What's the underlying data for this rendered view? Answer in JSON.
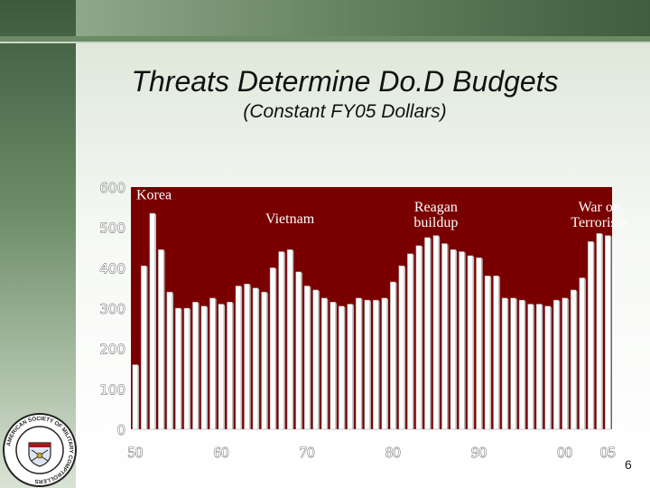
{
  "slide": {
    "title": "Threats Determine Do.D Budgets",
    "subtitle": "(Constant FY05 Dollars)",
    "page_number": "6"
  },
  "logo": {
    "text": "AMERICAN SOCIETY OF MILITARY COMPTROLLERS"
  },
  "colors": {
    "plot_background": "#7a0000",
    "bar_fill": "#ffffff",
    "bar_shadow": "#c9c9c9",
    "tick_label_y": "#ffffff",
    "tick_label_x": "#ffffff",
    "annotation_text": "#ffffff"
  },
  "chart_data": {
    "type": "bar",
    "title": "",
    "xlabel": "",
    "ylabel": "",
    "ylim": [
      0,
      600
    ],
    "y_ticks": [
      "600",
      "500",
      "400",
      "300",
      "200",
      "100",
      "0"
    ],
    "x_tick_labels": [
      {
        "label": "50",
        "year": 1950
      },
      {
        "label": "60",
        "year": 1960
      },
      {
        "label": "70",
        "year": 1970
      },
      {
        "label": "80",
        "year": 1980
      },
      {
        "label": "90",
        "year": 1990
      },
      {
        "label": "00",
        "year": 2000
      },
      {
        "label": "05",
        "year": 2005
      }
    ],
    "grid": false,
    "legend": "none",
    "annotations": [
      {
        "text": "Korea",
        "year": 1952,
        "value": 570
      },
      {
        "text": "Vietnam",
        "year": 1968,
        "value": 510
      },
      {
        "text": "Reagan buildup",
        "year": 1985,
        "value": 540
      },
      {
        "text": "War on Terrorism",
        "year": 2004,
        "value": 540
      }
    ],
    "categories": [
      1950,
      1951,
      1952,
      1953,
      1954,
      1955,
      1956,
      1957,
      1958,
      1959,
      1960,
      1961,
      1962,
      1963,
      1964,
      1965,
      1966,
      1967,
      1968,
      1969,
      1970,
      1971,
      1972,
      1973,
      1974,
      1975,
      1976,
      1977,
      1978,
      1979,
      1980,
      1981,
      1982,
      1983,
      1984,
      1985,
      1986,
      1987,
      1988,
      1989,
      1990,
      1991,
      1992,
      1993,
      1994,
      1995,
      1996,
      1997,
      1998,
      1999,
      2000,
      2001,
      2002,
      2003,
      2004,
      2005
    ],
    "values": [
      160,
      405,
      535,
      445,
      340,
      300,
      300,
      315,
      305,
      325,
      310,
      315,
      355,
      360,
      350,
      340,
      400,
      440,
      445,
      390,
      355,
      345,
      325,
      315,
      305,
      310,
      325,
      320,
      320,
      325,
      365,
      405,
      435,
      455,
      475,
      480,
      460,
      445,
      440,
      430,
      425,
      380,
      380,
      325,
      325,
      320,
      310,
      310,
      305,
      320,
      325,
      345,
      375,
      465,
      485,
      480
    ]
  }
}
